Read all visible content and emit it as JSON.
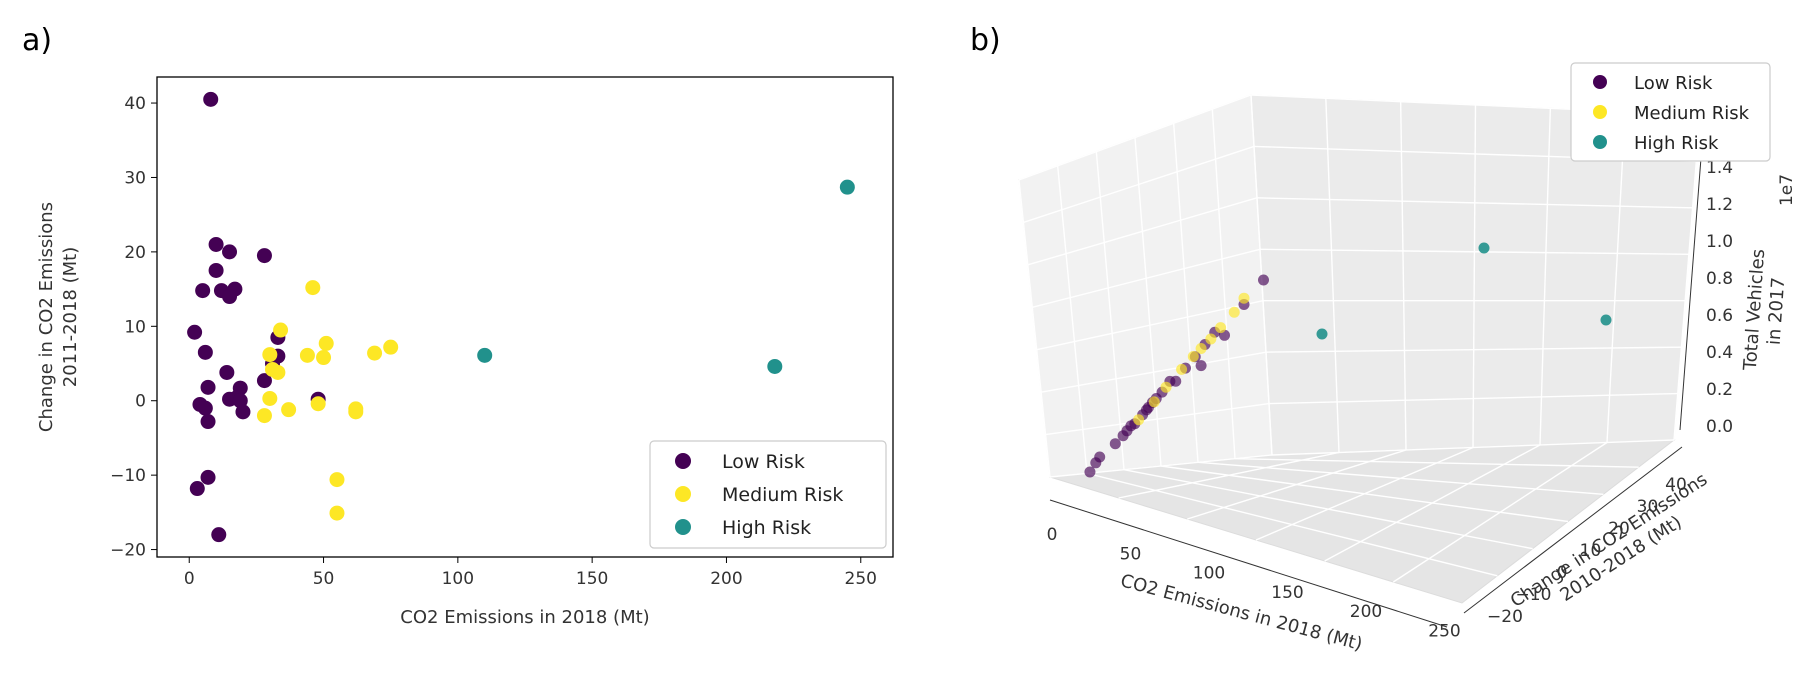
{
  "panels": {
    "a": "a)",
    "b": "b)"
  },
  "colors": {
    "low": "#440154",
    "medium": "#fde725",
    "high": "#21918c"
  },
  "chart_data": [
    {
      "type": "scatter",
      "title": "",
      "xlabel": "CO2 Emissions in 2018 (Mt)",
      "ylabel_lines": [
        "Change in CO2 Emissions",
        "2011-2018 (Mt)"
      ],
      "xlim": [
        -12,
        262
      ],
      "ylim": [
        -21,
        43.5
      ],
      "xticks": [
        0,
        50,
        100,
        150,
        200,
        250
      ],
      "yticks": [
        -20,
        -10,
        0,
        10,
        20,
        30,
        40
      ],
      "ytick_labels": [
        "−20",
        "−10",
        "0",
        "10",
        "20",
        "30",
        "40"
      ],
      "legend": {
        "placement": "lower-right"
      },
      "series": [
        {
          "name": "Low Risk",
          "color": "#440154",
          "points": [
            [
              8,
              40.5
            ],
            [
              10,
              21
            ],
            [
              15,
              20
            ],
            [
              28,
              19.5
            ],
            [
              10,
              17.5
            ],
            [
              5,
              14.8
            ],
            [
              12,
              14.8
            ],
            [
              17,
              15
            ],
            [
              15,
              14
            ],
            [
              2,
              9.2
            ],
            [
              33,
              8.5
            ],
            [
              6,
              6.5
            ],
            [
              33,
              6
            ],
            [
              31,
              5
            ],
            [
              14,
              3.8
            ],
            [
              28,
              2.7
            ],
            [
              7,
              1.8
            ],
            [
              19,
              1.7
            ],
            [
              15,
              0.2
            ],
            [
              18,
              0.5
            ],
            [
              4,
              -0.5
            ],
            [
              19,
              0
            ],
            [
              48,
              0.2
            ],
            [
              6,
              -1
            ],
            [
              20,
              -1.5
            ],
            [
              7,
              -2.8
            ],
            [
              7,
              -10.3
            ],
            [
              3,
              -11.8
            ],
            [
              11,
              -18
            ]
          ]
        },
        {
          "name": "Medium Risk",
          "color": "#fde725",
          "points": [
            [
              46,
              15.2
            ],
            [
              34,
              9.5
            ],
            [
              51,
              7.7
            ],
            [
              75,
              7.2
            ],
            [
              69,
              6.4
            ],
            [
              30,
              6.2
            ],
            [
              44,
              6.1
            ],
            [
              50,
              5.8
            ],
            [
              31,
              4.2
            ],
            [
              33,
              3.8
            ],
            [
              30,
              0.3
            ],
            [
              48,
              -0.4
            ],
            [
              37,
              -1.2
            ],
            [
              62,
              -1.1
            ],
            [
              62,
              -1.5
            ],
            [
              28,
              -2
            ],
            [
              55,
              -10.6
            ],
            [
              55,
              -15.1
            ]
          ]
        },
        {
          "name": "High Risk",
          "color": "#21918c",
          "points": [
            [
              110,
              6.1
            ],
            [
              218,
              4.6
            ],
            [
              245,
              28.7
            ]
          ]
        }
      ]
    },
    {
      "type": "scatter",
      "title": "",
      "xlabel": "CO2 Emissions in 2018 (Mt)",
      "ylabel_lines": [
        "Change in CO2 Emissions",
        "2010-2018 (Mt)"
      ],
      "zlabel_lines": [
        "Total Vehicles",
        "in 2017"
      ],
      "z_offset_label": "1e7",
      "xticks": [
        0,
        50,
        100,
        150,
        200,
        250
      ],
      "yticks": [
        -20,
        -10,
        0,
        10,
        20,
        30,
        40
      ],
      "ytick_labels": [
        "−20",
        "−10",
        "0",
        "10",
        "20",
        "30",
        "40"
      ],
      "zticks": [
        "0.0",
        "0.2",
        "0.4",
        "0.6",
        "0.8",
        "1.0",
        "1.2",
        "1.4"
      ],
      "legend": {
        "placement": "top-right"
      },
      "series": [
        {
          "name": "Low Risk",
          "color": "#440154",
          "points": [
            [
              1,
              0.05
            ],
            [
              4,
              0.1
            ],
            [
              6,
              0.13
            ],
            [
              14,
              0.14
            ],
            [
              18,
              0.16
            ],
            [
              20,
              0.18
            ],
            [
              22,
              0.2
            ],
            [
              24,
              0.19
            ],
            [
              28,
              0.22
            ],
            [
              30,
              0.24
            ],
            [
              31,
              0.25
            ],
            [
              33,
              0.27
            ],
            [
              35,
              0.28
            ],
            [
              38,
              0.3
            ],
            [
              42,
              0.35
            ],
            [
              45,
              0.3
            ],
            [
              50,
              0.36
            ],
            [
              55,
              0.4
            ],
            [
              60,
              0.45
            ],
            [
              65,
              0.5
            ],
            [
              70,
              0.38
            ],
            [
              80,
              0.55
            ],
            [
              90,
              0.65
            ],
            [
              58,
              0.25
            ]
          ]
        },
        {
          "name": "Medium Risk",
          "color": "#fde725",
          "points": [
            [
              26,
              0.2
            ],
            [
              34,
              0.26
            ],
            [
              40,
              0.32
            ],
            [
              48,
              0.38
            ],
            [
              54,
              0.42
            ],
            [
              58,
              0.44
            ],
            [
              63,
              0.46
            ],
            [
              68,
              0.5
            ],
            [
              75,
              0.55
            ],
            [
              80,
              0.62
            ]
          ]
        },
        {
          "name": "High Risk",
          "color": "#21918c",
          "points": [
            [
              110,
              0.9
            ],
            [
              218,
              1.25
            ],
            [
              245,
              0.85
            ]
          ]
        }
      ]
    }
  ]
}
